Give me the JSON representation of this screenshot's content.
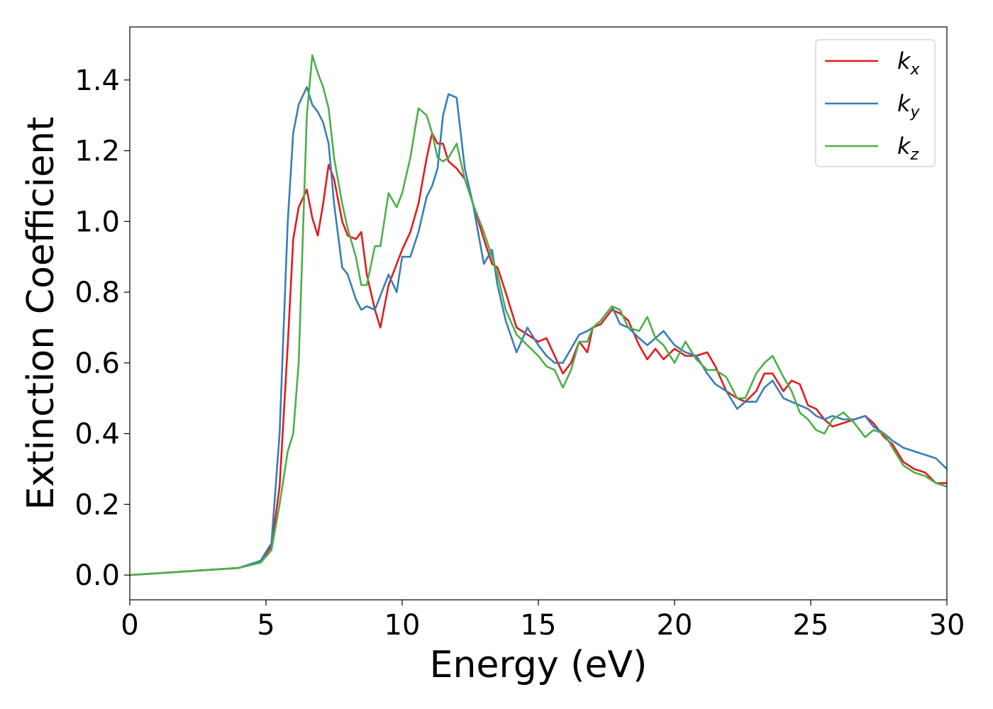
{
  "chart_data": {
    "type": "line",
    "xlabel": "Energy (eV)",
    "ylabel": "Extinction Coefficient",
    "xlim": [
      0,
      30
    ],
    "ylim": [
      -0.07,
      1.55
    ],
    "xticks": [
      0,
      5,
      10,
      15,
      20,
      25,
      30
    ],
    "xtick_labels": [
      "0",
      "5",
      "10",
      "15",
      "20",
      "25",
      "30"
    ],
    "yticks": [
      0.0,
      0.2,
      0.4,
      0.6,
      0.8,
      1.0,
      1.2,
      1.4
    ],
    "ytick_labels": [
      "0.0",
      "0.2",
      "0.4",
      "0.6",
      "0.8",
      "1.0",
      "1.2",
      "1.4"
    ],
    "grid": false,
    "legend_position": "top-right",
    "series": [
      {
        "name": "k_x",
        "name_main": "k",
        "name_sub": "x",
        "color": "#e41a1c",
        "x": [
          0,
          2,
          4,
          4.8,
          5.2,
          5.5,
          5.8,
          6.0,
          6.2,
          6.5,
          6.7,
          6.9,
          7.1,
          7.3,
          7.5,
          7.8,
          8.0,
          8.3,
          8.5,
          8.7,
          9.0,
          9.2,
          9.5,
          9.8,
          10.0,
          10.3,
          10.6,
          10.9,
          11.1,
          11.3,
          11.5,
          11.7,
          12.0,
          12.3,
          12.6,
          13.0,
          13.3,
          13.5,
          13.8,
          14.2,
          14.6,
          15.0,
          15.3,
          15.6,
          15.9,
          16.2,
          16.5,
          16.8,
          17.0,
          17.3,
          17.7,
          18.0,
          18.3,
          18.7,
          19.0,
          19.3,
          19.6,
          20.0,
          20.4,
          20.8,
          21.2,
          21.5,
          21.9,
          22.3,
          22.6,
          23.0,
          23.3,
          23.6,
          24.0,
          24.3,
          24.6,
          24.9,
          25.2,
          25.5,
          25.8,
          26.2,
          26.6,
          27.0,
          27.3,
          27.7,
          28.0,
          28.4,
          28.8,
          29.2,
          29.6,
          30.0
        ],
        "y": [
          0.0,
          0.01,
          0.02,
          0.04,
          0.08,
          0.25,
          0.65,
          0.95,
          1.04,
          1.09,
          1.01,
          0.96,
          1.05,
          1.16,
          1.12,
          1.0,
          0.96,
          0.95,
          0.97,
          0.85,
          0.75,
          0.7,
          0.82,
          0.88,
          0.92,
          0.97,
          1.05,
          1.18,
          1.25,
          1.22,
          1.22,
          1.17,
          1.15,
          1.12,
          1.05,
          0.95,
          0.88,
          0.87,
          0.8,
          0.7,
          0.68,
          0.66,
          0.67,
          0.62,
          0.57,
          0.6,
          0.66,
          0.63,
          0.7,
          0.71,
          0.75,
          0.74,
          0.72,
          0.65,
          0.61,
          0.64,
          0.61,
          0.64,
          0.62,
          0.62,
          0.63,
          0.59,
          0.52,
          0.5,
          0.49,
          0.52,
          0.57,
          0.57,
          0.52,
          0.55,
          0.54,
          0.48,
          0.47,
          0.44,
          0.42,
          0.43,
          0.44,
          0.45,
          0.43,
          0.39,
          0.37,
          0.32,
          0.3,
          0.29,
          0.26,
          0.26
        ]
      },
      {
        "name": "k_y",
        "name_main": "k",
        "name_sub": "y",
        "color": "#377eb8",
        "x": [
          0,
          2,
          4,
          4.8,
          5.2,
          5.5,
          5.8,
          6.0,
          6.2,
          6.5,
          6.7,
          6.9,
          7.1,
          7.3,
          7.5,
          7.8,
          8.0,
          8.3,
          8.5,
          8.7,
          9.0,
          9.2,
          9.5,
          9.8,
          10.0,
          10.3,
          10.6,
          10.9,
          11.1,
          11.3,
          11.5,
          11.7,
          12.0,
          12.3,
          12.6,
          13.0,
          13.3,
          13.5,
          13.8,
          14.2,
          14.6,
          15.0,
          15.3,
          15.6,
          15.9,
          16.2,
          16.5,
          16.8,
          17.0,
          17.3,
          17.7,
          18.0,
          18.3,
          18.7,
          19.0,
          19.3,
          19.6,
          20.0,
          20.4,
          20.8,
          21.2,
          21.5,
          21.9,
          22.3,
          22.6,
          23.0,
          23.3,
          23.6,
          24.0,
          24.3,
          24.6,
          24.9,
          25.2,
          25.5,
          25.8,
          26.2,
          26.6,
          27.0,
          27.3,
          27.7,
          28.0,
          28.4,
          28.8,
          29.2,
          29.6,
          30.0
        ],
        "y": [
          0.0,
          0.01,
          0.02,
          0.04,
          0.09,
          0.4,
          1.0,
          1.25,
          1.33,
          1.38,
          1.33,
          1.31,
          1.28,
          1.22,
          1.05,
          0.87,
          0.85,
          0.78,
          0.75,
          0.76,
          0.75,
          0.79,
          0.85,
          0.8,
          0.9,
          0.9,
          0.97,
          1.07,
          1.1,
          1.15,
          1.3,
          1.36,
          1.35,
          1.15,
          1.05,
          0.88,
          0.92,
          0.82,
          0.72,
          0.63,
          0.7,
          0.65,
          0.62,
          0.6,
          0.6,
          0.64,
          0.68,
          0.69,
          0.7,
          0.72,
          0.76,
          0.71,
          0.7,
          0.67,
          0.65,
          0.67,
          0.69,
          0.65,
          0.63,
          0.62,
          0.57,
          0.54,
          0.52,
          0.47,
          0.49,
          0.49,
          0.53,
          0.55,
          0.5,
          0.49,
          0.48,
          0.47,
          0.45,
          0.44,
          0.45,
          0.44,
          0.44,
          0.45,
          0.42,
          0.4,
          0.38,
          0.36,
          0.35,
          0.34,
          0.33,
          0.3
        ]
      },
      {
        "name": "k_z",
        "name_main": "k",
        "name_sub": "z",
        "color": "#4daf4a",
        "x": [
          0,
          2,
          4,
          4.8,
          5.2,
          5.5,
          5.8,
          6.0,
          6.2,
          6.5,
          6.7,
          6.9,
          7.1,
          7.3,
          7.5,
          7.8,
          8.0,
          8.3,
          8.5,
          8.7,
          9.0,
          9.2,
          9.5,
          9.8,
          10.0,
          10.3,
          10.6,
          10.9,
          11.1,
          11.3,
          11.5,
          11.7,
          12.0,
          12.3,
          12.6,
          13.0,
          13.3,
          13.5,
          13.8,
          14.2,
          14.6,
          15.0,
          15.3,
          15.6,
          15.9,
          16.2,
          16.5,
          16.8,
          17.0,
          17.3,
          17.7,
          18.0,
          18.3,
          18.7,
          19.0,
          19.3,
          19.6,
          20.0,
          20.4,
          20.8,
          21.2,
          21.5,
          21.9,
          22.3,
          22.6,
          23.0,
          23.3,
          23.6,
          24.0,
          24.3,
          24.6,
          24.9,
          25.2,
          25.5,
          25.8,
          26.2,
          26.6,
          27.0,
          27.3,
          27.7,
          28.0,
          28.4,
          28.8,
          29.2,
          29.6,
          30.0
        ],
        "y": [
          0.0,
          0.01,
          0.02,
          0.035,
          0.07,
          0.2,
          0.35,
          0.4,
          0.6,
          1.3,
          1.47,
          1.42,
          1.38,
          1.32,
          1.18,
          1.05,
          0.98,
          0.9,
          0.82,
          0.82,
          0.93,
          0.93,
          1.08,
          1.04,
          1.08,
          1.18,
          1.32,
          1.3,
          1.25,
          1.18,
          1.17,
          1.18,
          1.22,
          1.12,
          1.05,
          0.97,
          0.9,
          0.85,
          0.75,
          0.68,
          0.65,
          0.62,
          0.59,
          0.58,
          0.53,
          0.58,
          0.66,
          0.66,
          0.7,
          0.72,
          0.76,
          0.75,
          0.7,
          0.69,
          0.73,
          0.67,
          0.65,
          0.6,
          0.66,
          0.61,
          0.58,
          0.58,
          0.56,
          0.5,
          0.5,
          0.57,
          0.6,
          0.62,
          0.56,
          0.52,
          0.46,
          0.44,
          0.41,
          0.4,
          0.44,
          0.46,
          0.43,
          0.39,
          0.41,
          0.4,
          0.36,
          0.31,
          0.29,
          0.28,
          0.26,
          0.25
        ]
      }
    ]
  }
}
